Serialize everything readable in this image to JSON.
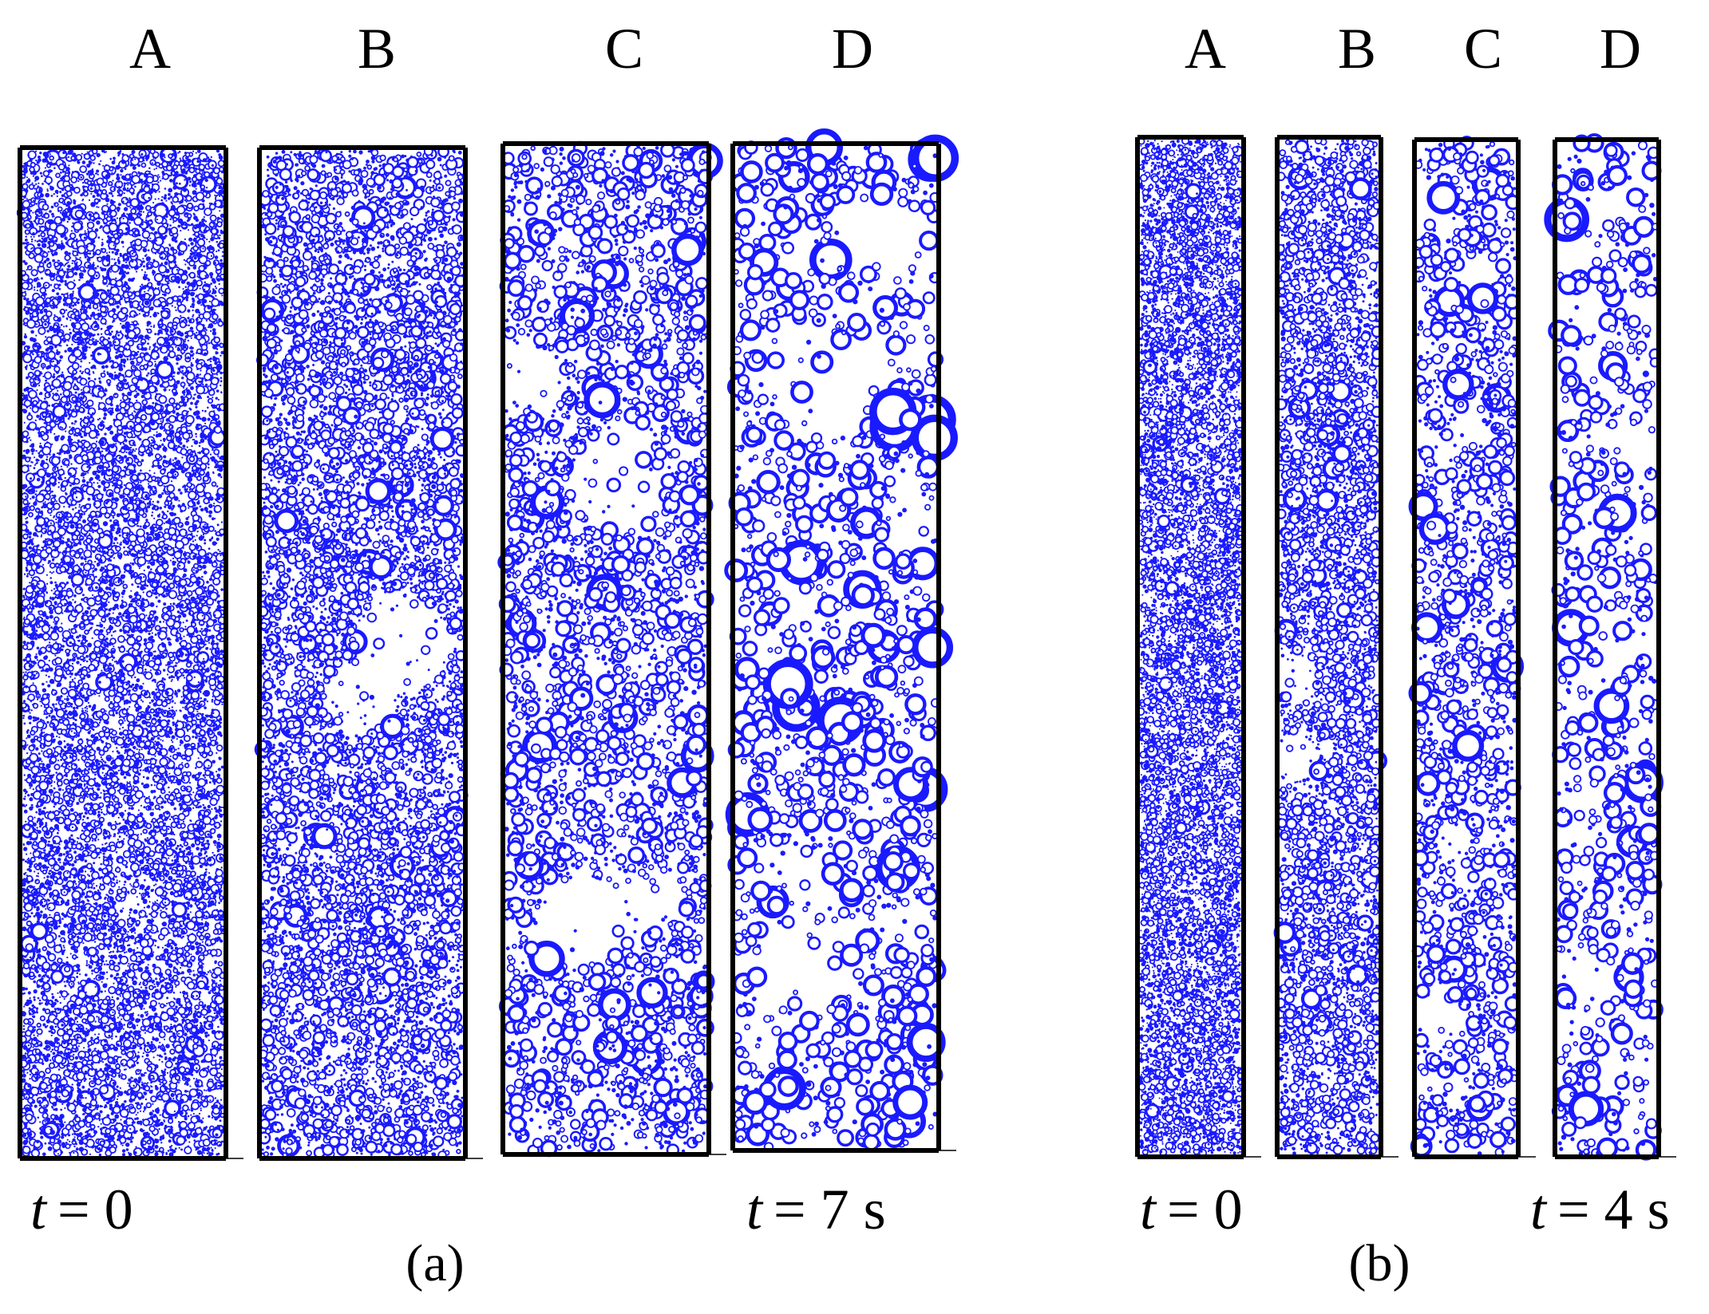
{
  "colors": {
    "particle": "#1a1aff",
    "frame": "#000000",
    "background": "#ffffff"
  },
  "panels": [
    {
      "label": "(a)",
      "columns": [
        {
          "label": "A",
          "size_scale": 0.55,
          "density": 1.0,
          "voids": 0
        },
        {
          "label": "B",
          "size_scale": 0.75,
          "density": 1.15,
          "voids": 2
        },
        {
          "label": "C",
          "size_scale": 1.05,
          "density": 1.0,
          "voids": 5
        },
        {
          "label": "D",
          "size_scale": 1.45,
          "density": 0.85,
          "voids": 8
        }
      ],
      "time_start": {
        "symbol": "t",
        "value": "= 0"
      },
      "time_end": {
        "symbol": "t",
        "value": "= 7 s"
      }
    },
    {
      "label": "(b)",
      "columns": [
        {
          "label": "A",
          "size_scale": 0.5,
          "density": 1.1,
          "voids": 0
        },
        {
          "label": "B",
          "size_scale": 0.7,
          "density": 1.1,
          "voids": 2
        },
        {
          "label": "C",
          "size_scale": 1.0,
          "density": 0.9,
          "voids": 5
        },
        {
          "label": "D",
          "size_scale": 1.3,
          "density": 0.7,
          "voids": 8
        }
      ],
      "time_start": {
        "symbol": "t",
        "value": "= 0"
      },
      "time_end": {
        "symbol": "t",
        "value": "= 4 s"
      }
    }
  ]
}
